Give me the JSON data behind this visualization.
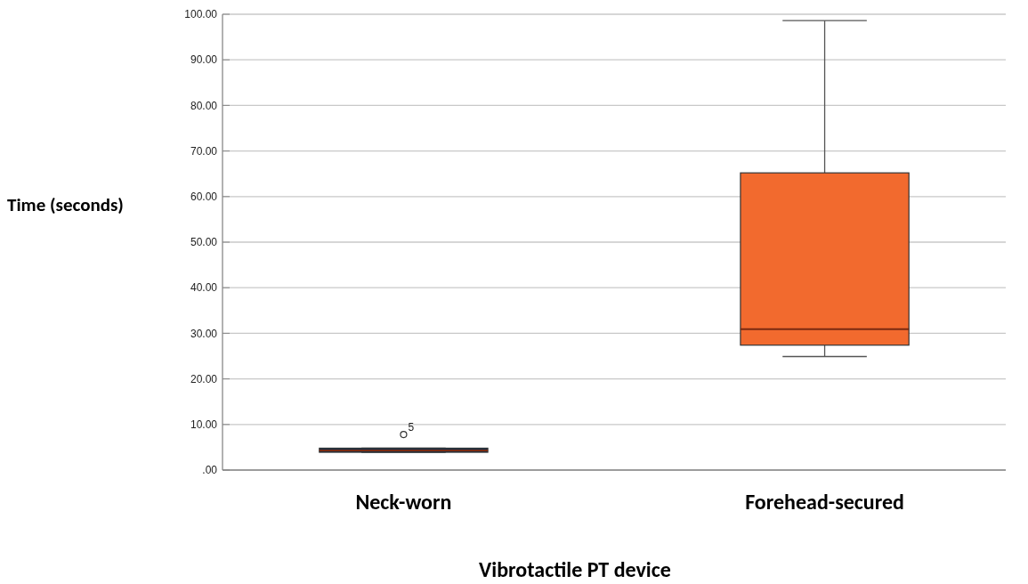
{
  "chart_data": {
    "type": "box",
    "xlabel": "Vibrotactile PT device",
    "ylabel": "Time (seconds)",
    "categories": [
      "Neck-worn",
      "Forehead-secured"
    ],
    "colors": [
      "#12304d",
      "#f26a2e"
    ],
    "boxes": [
      {
        "low": 3.9,
        "q1": 3.9,
        "median": 4.3,
        "q3": 4.8,
        "high": 4.8,
        "outliers": [
          7.8
        ]
      },
      {
        "low": 24.9,
        "q1": 27.4,
        "median": 30.9,
        "q3": 65.2,
        "high": 98.6
      }
    ],
    "ylim": [
      0,
      100
    ],
    "yticks": [
      {
        "value": 0,
        "label": ".00"
      },
      {
        "value": 10,
        "label": "10.00"
      },
      {
        "value": 20,
        "label": "20.00"
      },
      {
        "value": 30,
        "label": "30.00"
      },
      {
        "value": 40,
        "label": "40.00"
      },
      {
        "value": 50,
        "label": "50.00"
      },
      {
        "value": 60,
        "label": "60.00"
      },
      {
        "value": 70,
        "label": "70.00"
      },
      {
        "value": 80,
        "label": "80.00"
      },
      {
        "value": 90,
        "label": "90.00"
      },
      {
        "value": 100,
        "label": "100.00"
      }
    ],
    "grid": "y",
    "annotations": [
      "5"
    ]
  }
}
